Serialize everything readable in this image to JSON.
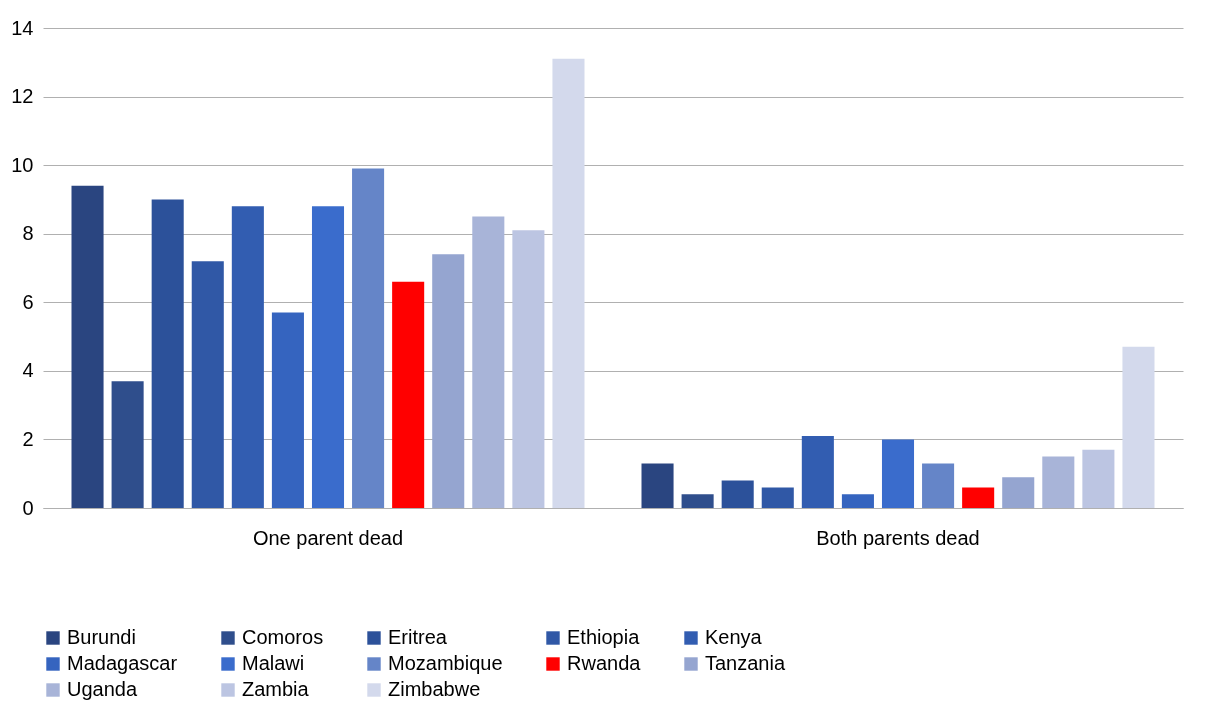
{
  "chart_data": {
    "type": "bar",
    "categories": [
      "One parent dead",
      "Both parents dead"
    ],
    "ylim": [
      0,
      14
    ],
    "yticks": [
      0,
      2,
      4,
      6,
      8,
      10,
      12,
      14
    ],
    "grid": "y",
    "legend": "bottom",
    "series": [
      {
        "name": "Burundi",
        "color": "#2a4580",
        "values": [
          9.4,
          1.3
        ]
      },
      {
        "name": "Comoros",
        "color": "#2f4e8c",
        "values": [
          3.7,
          0.4
        ]
      },
      {
        "name": "Eritrea",
        "color": "#2c519a",
        "values": [
          9.0,
          0.8
        ]
      },
      {
        "name": "Ethiopia",
        "color": "#3058a6",
        "values": [
          7.2,
          0.6
        ]
      },
      {
        "name": "Kenya",
        "color": "#325db1",
        "values": [
          8.8,
          2.1
        ]
      },
      {
        "name": "Madagascar",
        "color": "#3564bf",
        "values": [
          5.7,
          0.4
        ]
      },
      {
        "name": "Malawi",
        "color": "#3a6ccc",
        "values": [
          8.8,
          2.0
        ]
      },
      {
        "name": "Mozambique",
        "color": "#6585c8",
        "values": [
          9.9,
          1.3
        ]
      },
      {
        "name": "Rwanda",
        "color": "#ff0000",
        "values": [
          6.6,
          0.6
        ]
      },
      {
        "name": "Tanzania",
        "color": "#95a5d0",
        "values": [
          7.4,
          0.9
        ]
      },
      {
        "name": "Uganda",
        "color": "#a8b4d8",
        "values": [
          8.5,
          1.5
        ]
      },
      {
        "name": "Zambia",
        "color": "#bcc5e2",
        "values": [
          8.1,
          1.7
        ]
      },
      {
        "name": "Zimbabwe",
        "color": "#d3d9ec",
        "values": [
          13.1,
          4.7
        ]
      }
    ]
  }
}
